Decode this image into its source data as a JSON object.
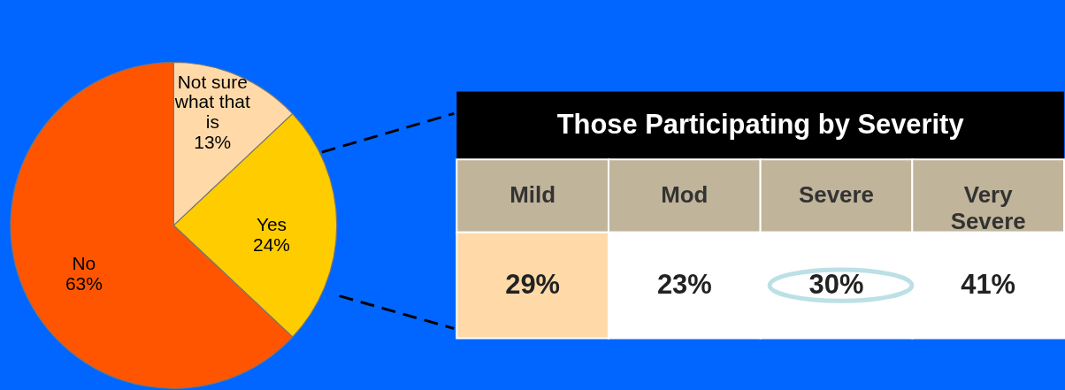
{
  "chart_data": [
    {
      "type": "pie",
      "categories": [
        "Not sure what that is",
        "Yes",
        "No"
      ],
      "values": [
        13,
        24,
        63
      ],
      "colors": [
        "#ffdaa8",
        "#ffcc00",
        "#ff5500"
      ],
      "value_labels": [
        "13%",
        "24%",
        "63%"
      ]
    },
    {
      "type": "other",
      "title": "Those Participating by Severity",
      "categories": [
        "Mild",
        "Mod",
        "Severe",
        "Very Severe"
      ],
      "value_labels": [
        "29%",
        "23%",
        "30%",
        "41%"
      ]
    }
  ]
}
